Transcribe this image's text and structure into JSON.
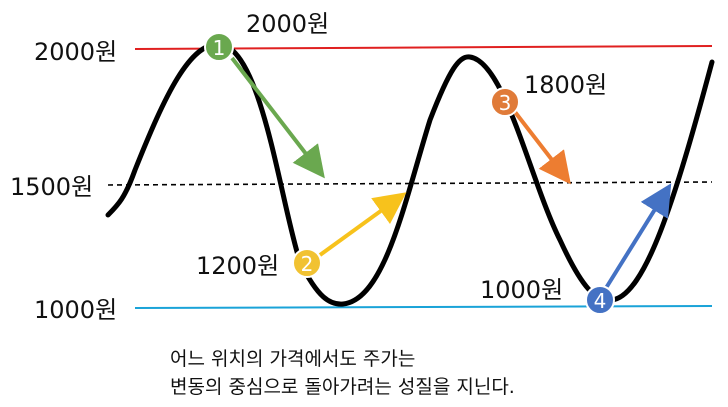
{
  "levels": {
    "high": "2000원",
    "mid": "1500원",
    "low": "1000원"
  },
  "points": [
    {
      "number": "1",
      "label": "2000원",
      "color": "#6aa84f"
    },
    {
      "number": "2",
      "label": "1200원",
      "color": "#f1c232"
    },
    {
      "number": "3",
      "label": "1800원",
      "color": "#e07b39"
    },
    {
      "number": "4",
      "label": "1000원",
      "color": "#4472c4"
    }
  ],
  "colors": {
    "high_line": "#e02020",
    "low_line": "#1aa3d8",
    "mid_line": "#000000",
    "curve": "#000000",
    "arrow_1": "#6aa84f",
    "arrow_2": "#f7c21c",
    "arrow_3": "#ed7d31",
    "arrow_4": "#4472c4"
  },
  "caption": {
    "line1": "어느 위치의 가격에서도 주가는",
    "line2": "변동의 중심으로 돌아가려는 성질을 지닌다."
  }
}
